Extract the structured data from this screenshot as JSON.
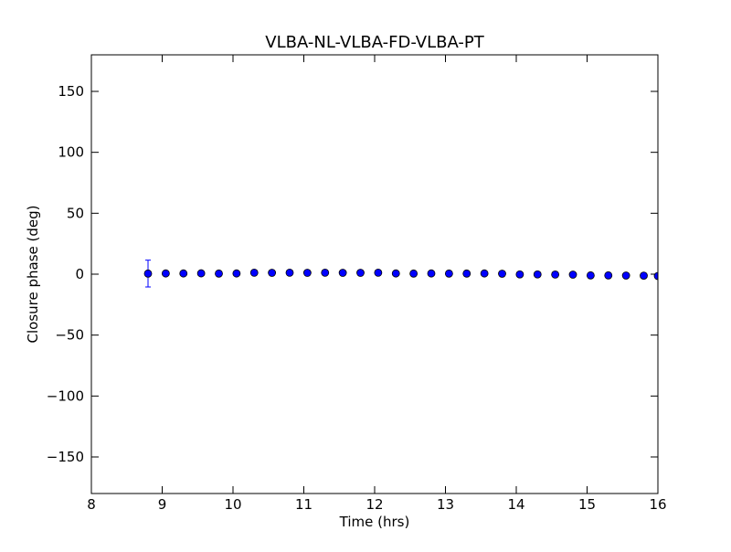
{
  "chart_data": {
    "type": "scatter",
    "title": "VLBA-NL-VLBA-FD-VLBA-PT",
    "xlabel": "Time (hrs)",
    "ylabel": "Closure phase (deg)",
    "xlim": [
      8,
      16
    ],
    "ylim": [
      -180,
      180
    ],
    "xticks": [
      "8",
      "9",
      "10",
      "11",
      "12",
      "13",
      "14",
      "15",
      "16"
    ],
    "yticks": [
      "−150",
      "−100",
      "−50",
      "0",
      "50",
      "100",
      "150"
    ],
    "ytick_values": [
      -150,
      -100,
      -50,
      0,
      50,
      100,
      150
    ],
    "xtick_values": [
      8,
      9,
      10,
      11,
      12,
      13,
      14,
      15,
      16
    ],
    "grid": false,
    "marker_color": "#0000ff",
    "error_color": "#0000ff",
    "points": [
      {
        "x": 8.8,
        "y": 0.5,
        "err": 11
      },
      {
        "x": 9.05,
        "y": 0.6,
        "err": 1
      },
      {
        "x": 9.3,
        "y": 0.6,
        "err": 0.5
      },
      {
        "x": 9.55,
        "y": 0.7,
        "err": 0.5
      },
      {
        "x": 9.8,
        "y": 0.5,
        "err": 0.5
      },
      {
        "x": 10.05,
        "y": 0.6,
        "err": 0.5
      },
      {
        "x": 10.3,
        "y": 1.2,
        "err": 0.5
      },
      {
        "x": 10.55,
        "y": 1.1,
        "err": 0.5
      },
      {
        "x": 10.8,
        "y": 1.2,
        "err": 0.5
      },
      {
        "x": 11.05,
        "y": 1.1,
        "err": 0.5
      },
      {
        "x": 11.3,
        "y": 1.2,
        "err": 0.5
      },
      {
        "x": 11.55,
        "y": 1.1,
        "err": 0.5
      },
      {
        "x": 11.8,
        "y": 1.1,
        "err": 0.5
      },
      {
        "x": 12.05,
        "y": 1.2,
        "err": 0.5
      },
      {
        "x": 12.3,
        "y": 0.6,
        "err": 0.5
      },
      {
        "x": 12.55,
        "y": 0.5,
        "err": 0.5
      },
      {
        "x": 12.8,
        "y": 0.6,
        "err": 0.5
      },
      {
        "x": 13.05,
        "y": 0.5,
        "err": 0.5
      },
      {
        "x": 13.3,
        "y": 0.5,
        "err": 0.5
      },
      {
        "x": 13.55,
        "y": 0.6,
        "err": 0.5
      },
      {
        "x": 13.8,
        "y": 0.4,
        "err": 0.5
      },
      {
        "x": 14.05,
        "y": -0.2,
        "err": 0.5
      },
      {
        "x": 14.3,
        "y": -0.2,
        "err": 0.5
      },
      {
        "x": 14.55,
        "y": -0.3,
        "err": 0.5
      },
      {
        "x": 14.8,
        "y": -0.4,
        "err": 0.5
      },
      {
        "x": 15.05,
        "y": -1.0,
        "err": 0.5
      },
      {
        "x": 15.3,
        "y": -1.0,
        "err": 0.5
      },
      {
        "x": 15.55,
        "y": -1.1,
        "err": 0.5
      },
      {
        "x": 15.8,
        "y": -1.2,
        "err": 0.5
      },
      {
        "x": 16.0,
        "y": -1.5,
        "err": 2
      }
    ]
  }
}
